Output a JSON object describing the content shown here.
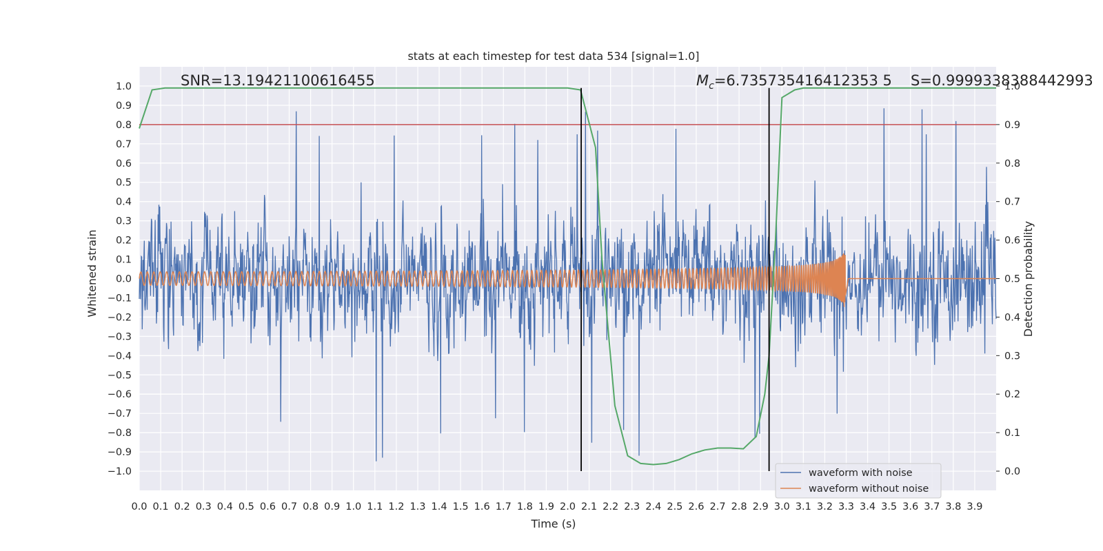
{
  "chart_data": {
    "type": "line",
    "title": "stats at each timestep for test data 534 [signal=1.0]",
    "xlabel": "Time (s)",
    "ylabel": "Whitened strain",
    "y2label": "Detection probability",
    "xlim": [
      0.0,
      4.0
    ],
    "ylim": [
      -1.1,
      1.1
    ],
    "y2lim": [
      -0.05,
      1.05
    ],
    "x_ticks": [
      "0.0",
      "0.1",
      "0.2",
      "0.3",
      "0.4",
      "0.5",
      "0.6",
      "0.7",
      "0.8",
      "0.9",
      "1.0",
      "1.1",
      "1.2",
      "1.3",
      "1.4",
      "1.5",
      "1.6",
      "1.7",
      "1.8",
      "1.9",
      "2.0",
      "2.1",
      "2.2",
      "2.3",
      "2.4",
      "2.5",
      "2.6",
      "2.7",
      "2.8",
      "2.9",
      "3.0",
      "3.1",
      "3.2",
      "3.3",
      "3.4",
      "3.5",
      "3.6",
      "3.7",
      "3.8",
      "3.9"
    ],
    "y_ticks": [
      "1.0",
      "0.9",
      "0.8",
      "0.7",
      "0.6",
      "0.5",
      "0.4",
      "0.3",
      "0.2",
      "0.1",
      "0.0",
      "−0.1",
      "−0.2",
      "−0.3",
      "−0.4",
      "−0.5",
      "−0.6",
      "−0.7",
      "−0.8",
      "−0.9",
      "−1.0"
    ],
    "y2_ticks": [
      "1.0",
      "0.9",
      "0.8",
      "0.7",
      "0.6",
      "0.5",
      "0.4",
      "0.3",
      "0.2",
      "0.1",
      "0.0"
    ],
    "annotations": {
      "snr": "SNR=13.19421100616455",
      "mc_symbol": "M",
      "mc_sub": "c",
      "mc_value": "=6.735735416412353 5",
      "s": "S=0.9999338388442993"
    },
    "threshold_y2": 0.9,
    "vertical_lines_x": [
      2.063,
      2.94
    ],
    "series": [
      {
        "name": "waveform with noise",
        "color": "#4c72b0",
        "kind": "noise",
        "amplitude_typical": 0.4,
        "range": [
          -0.97,
          0.98
        ]
      },
      {
        "name": "waveform without noise",
        "color": "#dd8452",
        "kind": "chirp",
        "start_amp": 0.035,
        "peak_amp": 0.37,
        "peak_x": 3.29,
        "start_freq_hz": 33,
        "end_freq_hz": 130
      },
      {
        "name": "Detection probability",
        "color": "#55a868",
        "axis": "y2",
        "x": [
          0.0,
          0.06,
          0.12,
          0.2,
          0.5,
          1.0,
          1.5,
          1.9,
          2.0,
          2.06,
          2.13,
          2.16,
          2.22,
          2.28,
          2.34,
          2.4,
          2.46,
          2.52,
          2.58,
          2.64,
          2.7,
          2.76,
          2.82,
          2.88,
          2.92,
          2.94,
          2.97,
          3.0,
          3.06,
          3.1,
          3.2,
          3.5,
          3.9,
          4.0
        ],
        "y": [
          0.89,
          0.99,
          0.995,
          0.995,
          0.995,
          0.995,
          0.995,
          0.995,
          0.995,
          0.99,
          0.84,
          0.55,
          0.17,
          0.04,
          0.02,
          0.017,
          0.02,
          0.03,
          0.045,
          0.055,
          0.06,
          0.06,
          0.058,
          0.09,
          0.2,
          0.3,
          0.6,
          0.97,
          0.99,
          0.995,
          0.995,
          0.995,
          0.995,
          0.995
        ]
      },
      {
        "name": "threshold",
        "color": "#c44e52",
        "axis": "y2",
        "value": 0.9
      }
    ],
    "legend": {
      "position": "lower-right",
      "entries": [
        {
          "label": "waveform with noise",
          "color": "#4c72b0"
        },
        {
          "label": "waveform without noise",
          "color": "#dd8452"
        }
      ]
    },
    "grid": true
  }
}
